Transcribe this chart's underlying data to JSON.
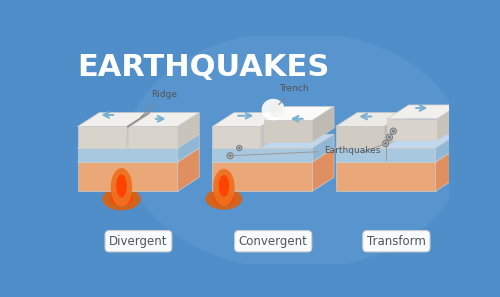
{
  "title": "EARTHQUAKES",
  "title_color": "#FFFFFF",
  "title_fontsize": 22,
  "bg_color": "#4F8EC9",
  "labels": [
    "Divergent",
    "Convergent",
    "Transform"
  ],
  "plate_top_white": "#F2F0EC",
  "plate_top_light": "#E8E4DC",
  "plate_ocean_blue": "#C8DFF0",
  "plate_ocean_mid": "#B0CFEA",
  "earth_top": "#F5C99A",
  "earth_side": "#EAA878",
  "earth_front": "#E09060",
  "magma_outer": "#F07020",
  "magma_inner": "#FF4400",
  "arrow_color": "#7AB0D0",
  "eq_dot_color": "#909090",
  "eq_ring_color": "#AAAAAA",
  "label_text": "#555555",
  "ann_text": "#555555",
  "line_color": "#999999",
  "crack_color": "#888888",
  "ellipse_bg": "#6AA0D8"
}
